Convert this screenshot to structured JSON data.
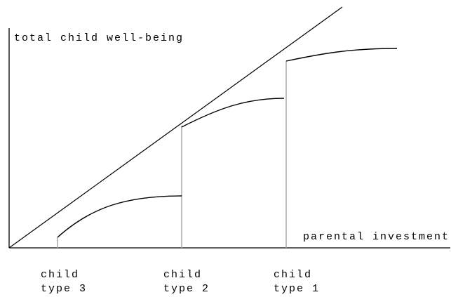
{
  "axes": {
    "y_label": "total child well-being",
    "x_label": "parental investment"
  },
  "types": [
    {
      "label": "child",
      "sub": "type 3"
    },
    {
      "label": "child",
      "sub": "type 2"
    },
    {
      "label": "child",
      "sub": "type 1"
    }
  ]
}
